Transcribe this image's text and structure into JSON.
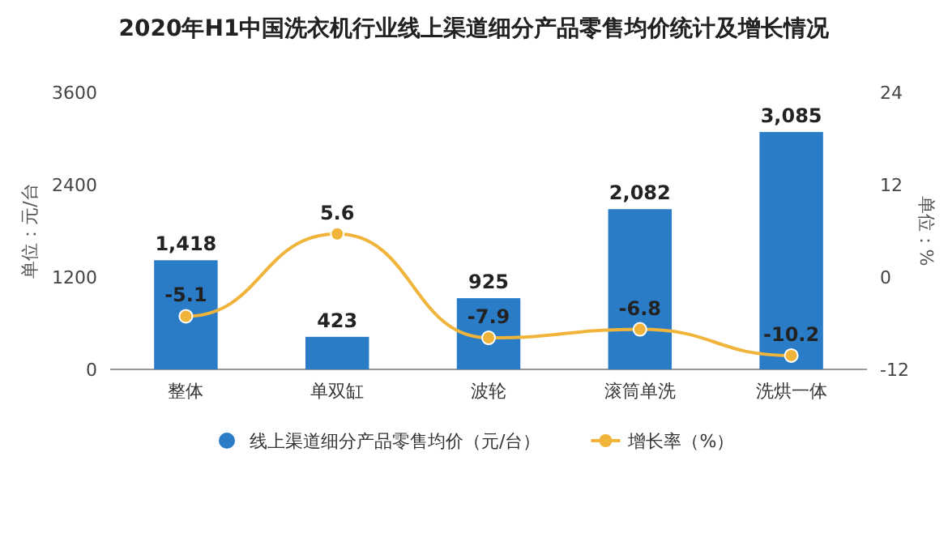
{
  "chart_data": {
    "type": "bar",
    "title": "2020年H1中国洗衣机行业线上渠道细分产品零售均价统计及增长情况",
    "categories": [
      "整体",
      "单双缸",
      "波轮",
      "滚筒单洗",
      "洗烘一体"
    ],
    "series": [
      {
        "name": "线上渠道细分产品零售均价（元/台）",
        "color": "#2a7cc7",
        "values": [
          1418,
          423,
          925,
          2082,
          3085
        ],
        "value_labels": [
          "1,418",
          "423",
          "925",
          "2,082",
          "3,085"
        ]
      },
      {
        "name": "增长率（%）",
        "type": "line",
        "axis": "y2",
        "color": "#f0b43a",
        "values": [
          -5.1,
          5.6,
          -7.9,
          -6.8,
          -10.2
        ]
      }
    ],
    "ylabel": "单位：元/台",
    "y2label": "单位：%",
    "ylim": [
      0,
      3600
    ],
    "yticks": [
      0,
      1200,
      2400,
      3600
    ],
    "y2lim": [
      -12,
      24
    ],
    "y2ticks": [
      -12,
      0,
      12,
      24
    ],
    "data_labels": true,
    "legend": "bottom",
    "marker": "circle"
  }
}
